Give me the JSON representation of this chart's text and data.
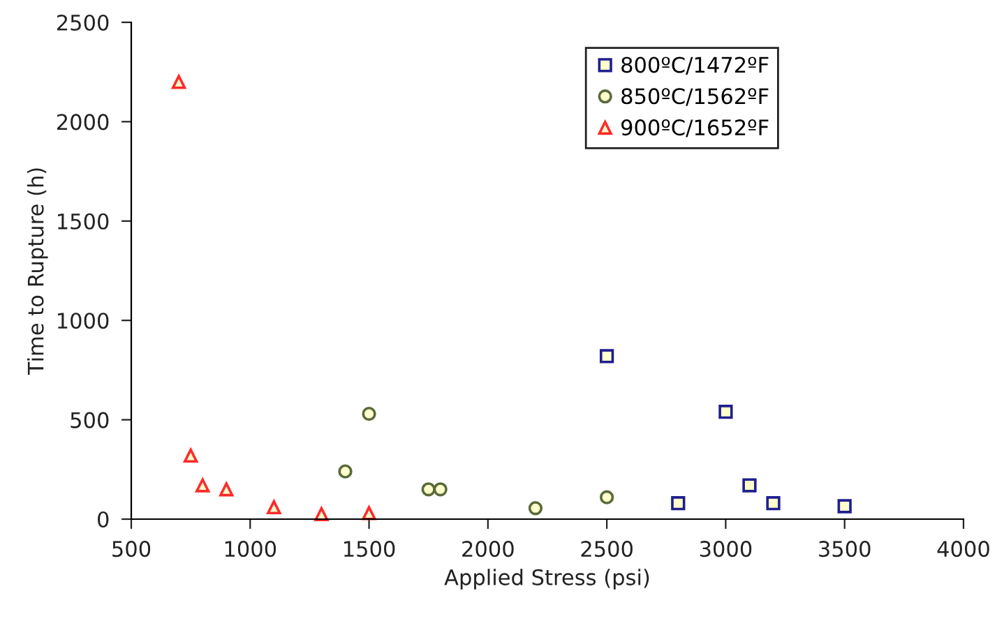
{
  "chart_data": {
    "type": "scatter",
    "xlabel": "Applied Stress (psi)",
    "ylabel": "Time to Rupture (h)",
    "xlim": [
      500,
      4000
    ],
    "xticks": [
      500,
      1000,
      1500,
      2000,
      2500,
      3000,
      3500,
      4000
    ],
    "ylim": [
      0,
      2500
    ],
    "yticks": [
      0,
      500,
      1000,
      1500,
      2000,
      2500
    ],
    "grid": false,
    "legend": "top right",
    "series": [
      {
        "name": "800ºC/1472ºF",
        "color": "#1f1f8f",
        "marker": "square",
        "x": [
          2500,
          2800,
          3000,
          3100,
          3200,
          3500
        ],
        "values": [
          820,
          80,
          540,
          170,
          80,
          65
        ]
      },
      {
        "name": "850ºC/1562ºF",
        "color": "#5a6a3a",
        "marker": "circle",
        "x": [
          1400,
          1500,
          1750,
          1800,
          2200,
          2500
        ],
        "values": [
          240,
          530,
          150,
          150,
          55,
          110
        ]
      },
      {
        "name": "900ºC/1652ºF",
        "color": "#ff2a2a",
        "marker": "triangle",
        "x": [
          700,
          750,
          800,
          900,
          1100,
          1300,
          1500
        ],
        "values": [
          2200,
          320,
          170,
          150,
          60,
          25,
          30
        ]
      }
    ]
  }
}
